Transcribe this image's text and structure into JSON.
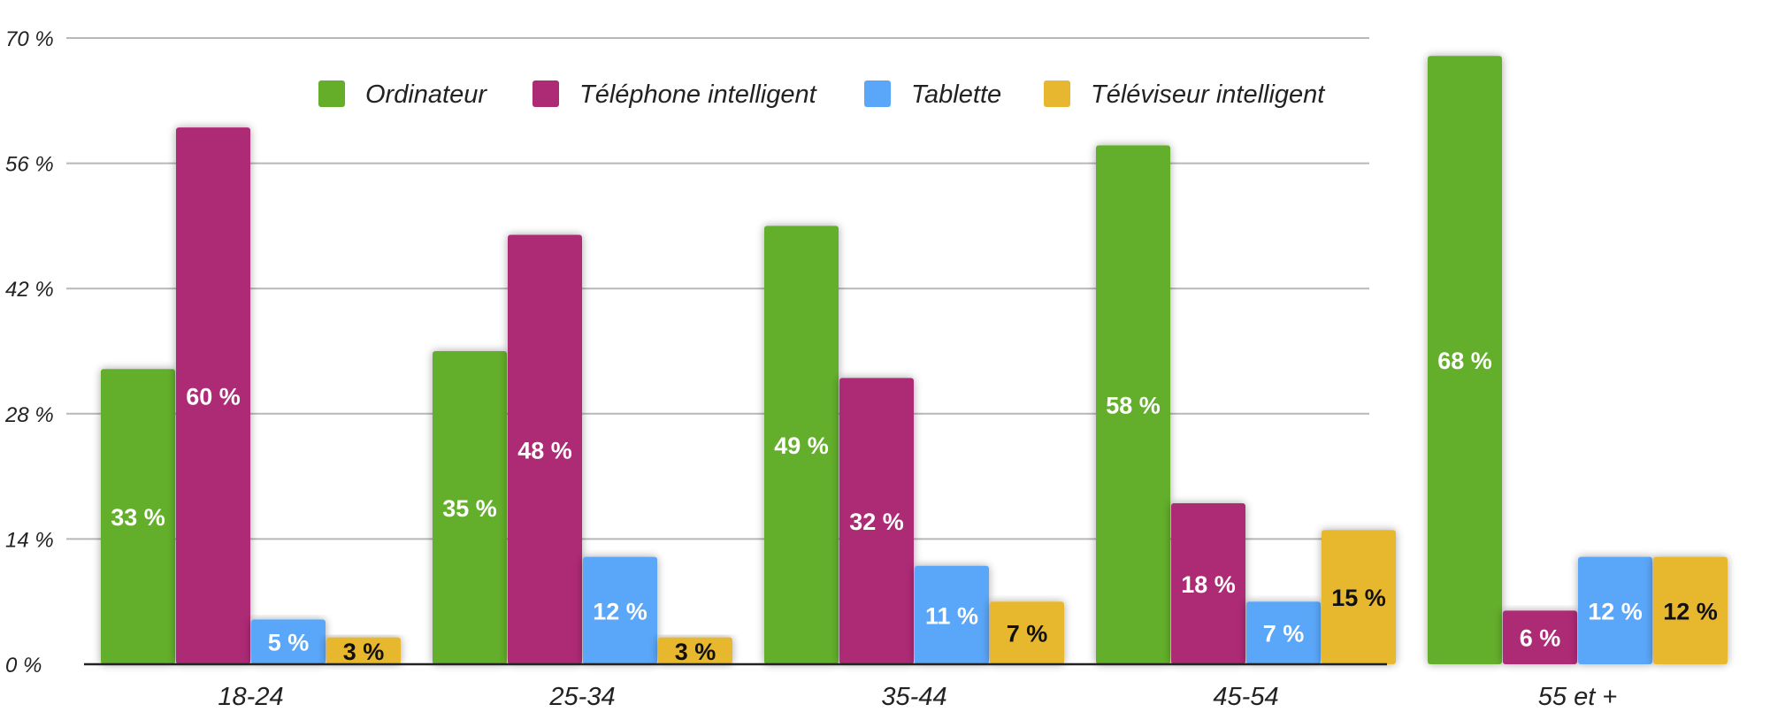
{
  "chart_data": {
    "type": "bar",
    "categories": [
      "18-24",
      "25-34",
      "35-44",
      "45-54",
      "55 et +"
    ],
    "series": [
      {
        "name": "Ordinateur",
        "color": "#64ae2a",
        "label_color": "#ffffff",
        "values": [
          33,
          35,
          49,
          58,
          68
        ],
        "labels": [
          "33 %",
          "35 %",
          "49 %",
          "58 %",
          "68 %"
        ]
      },
      {
        "name": "Téléphone intelligent",
        "color": "#ad2a74",
        "label_color": "#ffffff",
        "values": [
          60,
          48,
          32,
          18,
          6
        ],
        "labels": [
          "60 %",
          "48 %",
          "32 %",
          "18 %",
          "6 %"
        ]
      },
      {
        "name": "Tablette",
        "color": "#5aa6f8",
        "label_color": "#ffffff",
        "values": [
          5,
          12,
          11,
          7,
          12
        ],
        "labels": [
          "5 %",
          "12 %",
          "11 %",
          "7 %",
          "12 %"
        ]
      },
      {
        "name": "Téléviseur intelligent",
        "color": "#e7b72f",
        "label_color": "#111111",
        "values": [
          3,
          3,
          7,
          15,
          12
        ],
        "labels": [
          "3 %",
          "3 %",
          "7 %",
          "15 %",
          "12 %"
        ]
      }
    ],
    "ylim": [
      0,
      70
    ],
    "yticks": [
      0,
      14,
      28,
      42,
      56,
      70
    ],
    "ytick_labels": [
      "0 %",
      "14 %",
      "28 %",
      "42 %",
      "56 %",
      "70 %"
    ],
    "grid": true,
    "legend_position": "top"
  }
}
